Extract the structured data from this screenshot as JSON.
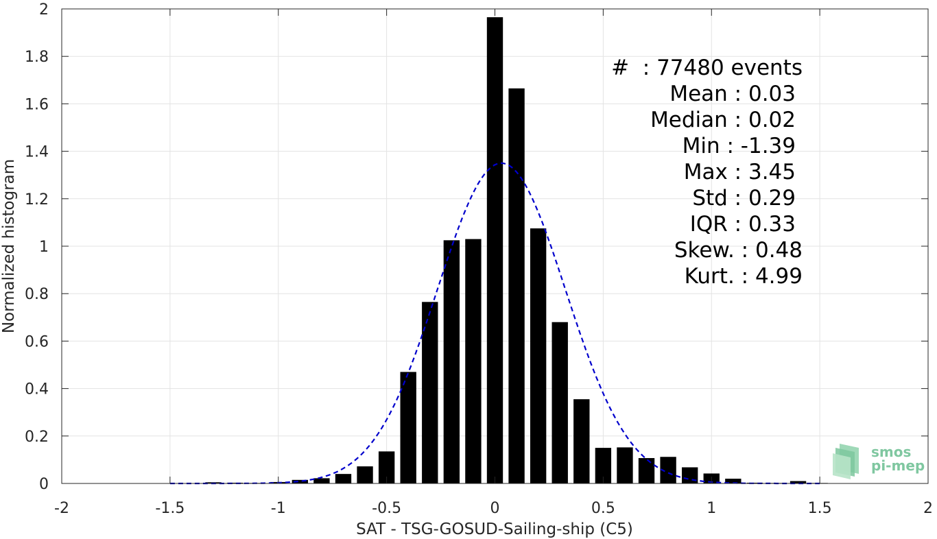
{
  "chart_data": {
    "type": "bar",
    "xlabel": "SAT - TSG-GOSUD-Sailing-ship (C5)",
    "ylabel": "Normalized histogram",
    "xlim": [
      -2,
      2
    ],
    "ylim": [
      0,
      2
    ],
    "xticks": [
      "-2",
      "-1.5",
      "-1",
      "-0.5",
      "0",
      "0.5",
      "1",
      "1.5",
      "2"
    ],
    "yticks": [
      "0",
      "0.2",
      "0.4",
      "0.6",
      "0.8",
      "1",
      "1.2",
      "1.4",
      "1.6",
      "1.8",
      "2"
    ],
    "grid": true,
    "bar_color": "#000000",
    "bins": [
      {
        "x": -1.3,
        "y": 0.005
      },
      {
        "x": -1.2,
        "y": 0.003
      },
      {
        "x": -1.1,
        "y": 0.002
      },
      {
        "x": -1.0,
        "y": 0.006
      },
      {
        "x": -0.9,
        "y": 0.015
      },
      {
        "x": -0.8,
        "y": 0.022
      },
      {
        "x": -0.7,
        "y": 0.04
      },
      {
        "x": -0.6,
        "y": 0.072
      },
      {
        "x": -0.5,
        "y": 0.135
      },
      {
        "x": -0.4,
        "y": 0.47
      },
      {
        "x": -0.3,
        "y": 0.765
      },
      {
        "x": -0.2,
        "y": 1.025
      },
      {
        "x": -0.1,
        "y": 1.03
      },
      {
        "x": 0.0,
        "y": 1.965
      },
      {
        "x": 0.1,
        "y": 1.665
      },
      {
        "x": 0.2,
        "y": 1.075
      },
      {
        "x": 0.3,
        "y": 0.68
      },
      {
        "x": 0.4,
        "y": 0.355
      },
      {
        "x": 0.5,
        "y": 0.15
      },
      {
        "x": 0.6,
        "y": 0.152
      },
      {
        "x": 0.7,
        "y": 0.107
      },
      {
        "x": 0.8,
        "y": 0.112
      },
      {
        "x": 0.9,
        "y": 0.068
      },
      {
        "x": 1.0,
        "y": 0.042
      },
      {
        "x": 1.1,
        "y": 0.02
      },
      {
        "x": 1.2,
        "y": 0.003
      },
      {
        "x": 1.3,
        "y": 0.002
      },
      {
        "x": 1.4,
        "y": 0.01
      },
      {
        "x": 1.5,
        "y": 0.002
      }
    ],
    "fit_curve": {
      "style": "dashed",
      "color": "#0000cc",
      "mean": 0.03,
      "std": 0.295,
      "peak": 1.35,
      "x_range": [
        -1.5,
        1.5
      ]
    }
  },
  "stats": {
    "count": "#  : 77480 events",
    "mean": "Mean : 0.03",
    "median": "Median : 0.02",
    "min": "Min : -1.39",
    "max": "Max : 3.45",
    "std": "Std : 0.29",
    "iqr": "IQR : 0.33",
    "skew": "Skew. : 0.48",
    "kurt": "Kurt. : 4.99"
  },
  "logo": {
    "line1": "smos",
    "line2": "pi-mep"
  }
}
